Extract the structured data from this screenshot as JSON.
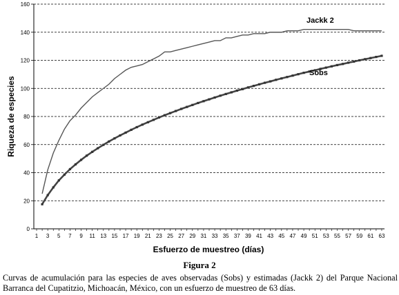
{
  "figure": {
    "title": "Figura 2",
    "caption": "Curvas de acumulación para las especies de aves observadas (Sobs) y estimadas (Jackk 2) del Parque Nacional Barranca del Cupatitzio, Michoacán, México, con un esfuerzo de muestreo de 63 días."
  },
  "chart_data": {
    "type": "line",
    "xlabel": "Esfuerzo de muestreo (días)",
    "ylabel": "Riqueza de especies",
    "xlim": [
      1,
      63
    ],
    "ylim": [
      0,
      160
    ],
    "x_ticks": [
      1,
      3,
      5,
      7,
      9,
      11,
      13,
      15,
      17,
      19,
      21,
      23,
      25,
      27,
      29,
      31,
      33,
      35,
      37,
      39,
      41,
      43,
      45,
      47,
      49,
      51,
      53,
      55,
      57,
      59,
      61,
      63
    ],
    "y_ticks": [
      0,
      20,
      40,
      60,
      80,
      100,
      120,
      140,
      160
    ],
    "grid": "horizontal dashed",
    "x": [
      2,
      3,
      4,
      5,
      6,
      7,
      8,
      9,
      10,
      11,
      12,
      13,
      14,
      15,
      16,
      17,
      18,
      19,
      20,
      21,
      22,
      23,
      24,
      25,
      26,
      27,
      28,
      29,
      30,
      31,
      32,
      33,
      34,
      35,
      36,
      37,
      38,
      39,
      40,
      41,
      42,
      43,
      44,
      45,
      46,
      47,
      48,
      49,
      50,
      51,
      52,
      53,
      54,
      55,
      56,
      57,
      58,
      59,
      60,
      61,
      62,
      63
    ],
    "series": [
      {
        "name": "Jackk 2",
        "color": "#555555",
        "values": [
          25,
          42,
          54,
          63,
          71,
          77,
          81,
          86,
          90,
          94,
          97,
          100,
          103,
          107,
          110,
          113,
          115,
          116,
          117,
          119,
          121,
          123,
          126,
          126,
          127,
          128,
          129,
          130,
          131,
          132,
          133,
          134,
          134,
          136,
          136,
          137,
          138,
          138,
          139,
          139,
          139,
          140,
          140,
          140,
          141,
          141,
          141,
          142,
          142,
          142,
          142,
          142,
          142,
          142,
          142,
          142,
          141,
          141,
          141,
          141,
          141,
          141
        ]
      },
      {
        "name": "Sobs",
        "color": "#444444",
        "values": [
          17.5,
          24,
          29.5,
          34.5,
          38.6,
          42.5,
          45.9,
          49.1,
          52.1,
          54.8,
          57.4,
          59.8,
          62.2,
          64.4,
          66.5,
          68.5,
          70.5,
          72.4,
          74.2,
          75.9,
          77.6,
          79.3,
          80.9,
          82.4,
          83.9,
          85.4,
          86.8,
          88.2,
          89.6,
          90.9,
          92.2,
          93.5,
          94.8,
          96.0,
          97.2,
          98.4,
          99.5,
          100.7,
          101.8,
          102.9,
          104.0,
          105.0,
          106.1,
          107.1,
          108.1,
          109.1,
          110.1,
          111.1,
          112.0,
          112.9,
          113.9,
          114.8,
          115.7,
          116.6,
          117.4,
          118.3,
          119.1,
          120.0,
          120.8,
          121.6,
          122.4,
          123.2
        ]
      }
    ]
  }
}
